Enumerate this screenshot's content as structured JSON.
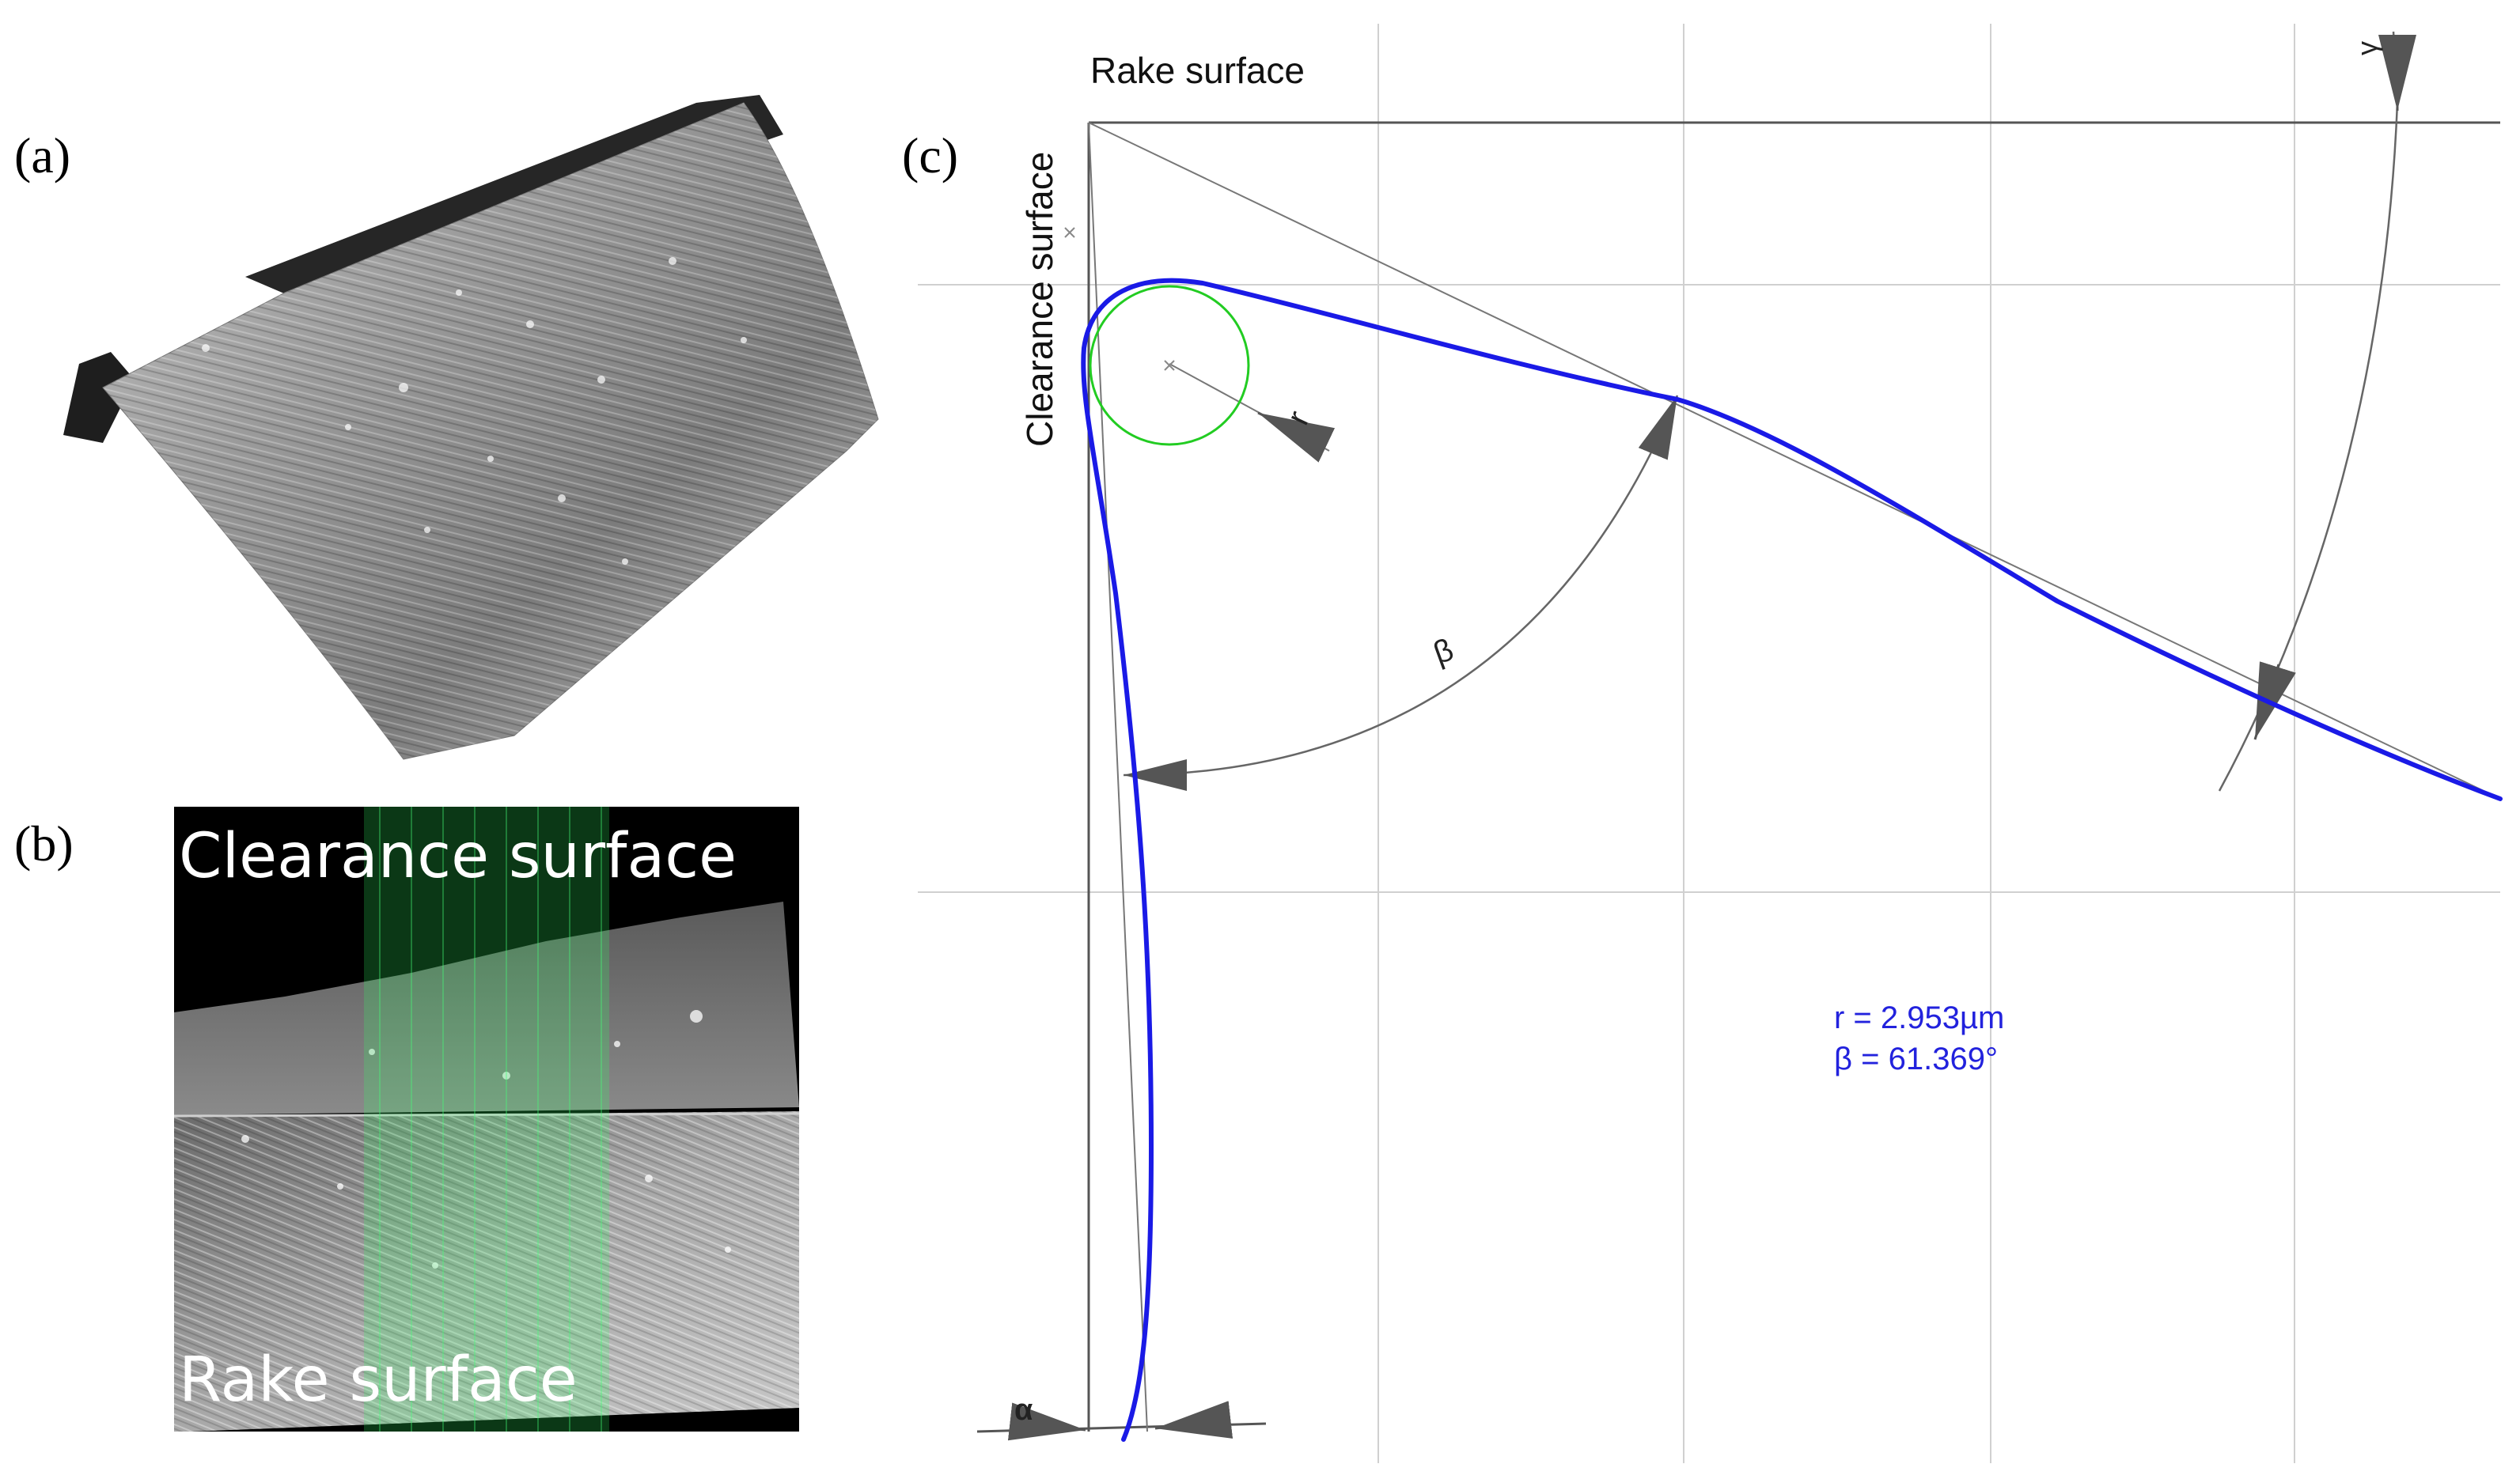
{
  "panels": {
    "a": {
      "label": "(a)"
    },
    "b": {
      "label": "(b)",
      "top_text": "Clearance surface",
      "bottom_text": "Rake surface"
    },
    "c": {
      "label": "(c)",
      "rake_label": "Rake surface",
      "clearance_label": "Clearance surface",
      "symbol_r": "r",
      "symbol_beta": "β",
      "symbol_gamma": "γ",
      "symbol_alpha": "α",
      "result_r": "r = 2.953µm",
      "result_beta": "β = 61.369°"
    }
  },
  "colors": {
    "profile": "#1a1ae6",
    "circle": "#22cc22",
    "construction": "#666666",
    "grid": "#d0d0d0",
    "annotation_text": "#2222dd"
  }
}
